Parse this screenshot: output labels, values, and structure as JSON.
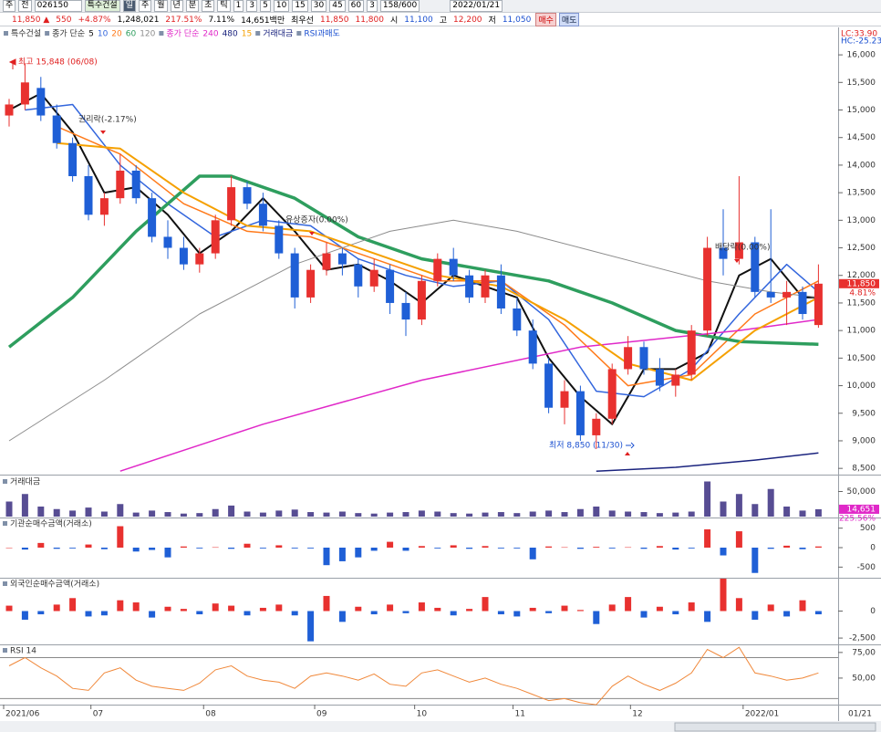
{
  "header": {
    "row1": [
      "주",
      "전",
      "026150",
      "특수건설",
      "일",
      "주",
      "월",
      "년",
      "분",
      "초",
      "틱",
      "1",
      "3",
      "5",
      "10",
      "15",
      "30",
      "45",
      "60",
      "3",
      "158/600",
      "2022/01/21"
    ],
    "row2": [
      "11,850 ▲",
      "550",
      "+4.87%",
      "1,248,021",
      "217.51%",
      "7.11%",
      "14,651백만",
      "최우선",
      "11,850",
      "11,800",
      "시",
      "11,100",
      "고",
      "12,200",
      "저",
      "11,050",
      "매수",
      "매도"
    ]
  },
  "chart_data": [
    {
      "type": "candlestick",
      "ma_label": "종가 단순",
      "extra_legend": "RSI과매도",
      "up_color": "#e8312f",
      "down_color": "#1f5fd6",
      "ohlc": [
        [
          14900,
          15200,
          14700,
          15100
        ],
        [
          15100,
          15848,
          15000,
          15500
        ],
        [
          15400,
          15600,
          14800,
          14900
        ],
        [
          14900,
          15100,
          14300,
          14400
        ],
        [
          14400,
          14500,
          13700,
          13800
        ],
        [
          13800,
          14000,
          13000,
          13100
        ],
        [
          13100,
          13500,
          12900,
          13400
        ],
        [
          13400,
          14200,
          13300,
          13900
        ],
        [
          13900,
          14000,
          13300,
          13400
        ],
        [
          13400,
          13500,
          12600,
          12700
        ],
        [
          12700,
          13000,
          12300,
          12500
        ],
        [
          12500,
          12700,
          12100,
          12200
        ],
        [
          12200,
          12500,
          12050,
          12400
        ],
        [
          12400,
          13100,
          12300,
          13000
        ],
        [
          13000,
          13800,
          12900,
          13600
        ],
        [
          13600,
          13700,
          13200,
          13300
        ],
        [
          13300,
          13500,
          12800,
          12900
        ],
        [
          12900,
          13000,
          12300,
          12400
        ],
        [
          12400,
          12500,
          11400,
          11600
        ],
        [
          11600,
          12200,
          11500,
          12100
        ],
        [
          12100,
          12600,
          12000,
          12400
        ],
        [
          12400,
          12500,
          12000,
          12200
        ],
        [
          12200,
          12300,
          11600,
          11800
        ],
        [
          11800,
          12300,
          11700,
          12100
        ],
        [
          12100,
          12200,
          11300,
          11500
        ],
        [
          11500,
          11700,
          10900,
          11200
        ],
        [
          11200,
          12000,
          11100,
          11900
        ],
        [
          11900,
          12400,
          11800,
          12300
        ],
        [
          12300,
          12500,
          11900,
          12000
        ],
        [
          12000,
          12100,
          11500,
          11600
        ],
        [
          11600,
          12100,
          11500,
          12000
        ],
        [
          12000,
          12200,
          11300,
          11400
        ],
        [
          11400,
          11600,
          10900,
          11000
        ],
        [
          11000,
          11200,
          10300,
          10400
        ],
        [
          10400,
          10500,
          9500,
          9600
        ],
        [
          9600,
          10100,
          9300,
          9900
        ],
        [
          9900,
          10000,
          9000,
          9100
        ],
        [
          9100,
          9500,
          8850,
          9400
        ],
        [
          9400,
          10400,
          9300,
          10300
        ],
        [
          10300,
          10900,
          10200,
          10700
        ],
        [
          10700,
          10800,
          10200,
          10300
        ],
        [
          10300,
          10500,
          9900,
          10000
        ],
        [
          10000,
          10300,
          9800,
          10200
        ],
        [
          10200,
          11100,
          10100,
          11000
        ],
        [
          11000,
          12700,
          10900,
          12500
        ],
        [
          12500,
          13200,
          12000,
          12300
        ],
        [
          12300,
          13800,
          12200,
          12600
        ],
        [
          12600,
          12700,
          11600,
          11700
        ],
        [
          11700,
          13200,
          11500,
          11600
        ],
        [
          11600,
          11900,
          11100,
          11700
        ],
        [
          11700,
          11800,
          11200,
          11300
        ],
        [
          11100,
          12200,
          11050,
          11850
        ]
      ],
      "series": [
        {
          "name": "5",
          "color": "#111111",
          "width": 2,
          "x": [
            0,
            2,
            4,
            6,
            8,
            10,
            12,
            14,
            16,
            18,
            20,
            22,
            24,
            26,
            28,
            30,
            32,
            34,
            36,
            38,
            40,
            42,
            44,
            46,
            48,
            50,
            51
          ],
          "values": [
            15000,
            15300,
            14600,
            13500,
            13600,
            13100,
            12400,
            12800,
            13400,
            12800,
            12100,
            12200,
            11900,
            11500,
            12000,
            11800,
            11600,
            10500,
            9800,
            9300,
            10300,
            10300,
            10600,
            12000,
            12300,
            11600,
            11600
          ]
        },
        {
          "name": "10",
          "color": "#3366dd",
          "width": 1.5,
          "x": [
            1,
            4,
            7,
            10,
            13,
            16,
            19,
            22,
            25,
            28,
            31,
            34,
            37,
            40,
            43,
            46,
            49,
            51
          ],
          "values": [
            15000,
            15100,
            14000,
            13300,
            12700,
            13000,
            12900,
            12300,
            12000,
            11800,
            11900,
            11200,
            9900,
            9800,
            10300,
            11300,
            12200,
            11700
          ]
        },
        {
          "name": "20",
          "color": "#ff7a1a",
          "width": 1.5,
          "x": [
            3,
            7,
            11,
            15,
            19,
            23,
            27,
            31,
            35,
            39,
            43,
            47,
            51
          ],
          "values": [
            14700,
            14200,
            13300,
            12800,
            12700,
            12300,
            11900,
            11900,
            11100,
            10000,
            10200,
            11300,
            11900
          ]
        },
        {
          "name": "60",
          "color": "#2e9e5e",
          "width": 3.5,
          "x": [
            0,
            4,
            8,
            12,
            14,
            18,
            22,
            26,
            30,
            34,
            38,
            42,
            46,
            51
          ],
          "values": [
            10700,
            11600,
            12800,
            13800,
            13800,
            13400,
            12700,
            12300,
            12100,
            11900,
            11500,
            11000,
            10800,
            10750
          ]
        },
        {
          "name": "120",
          "color": "#8c8c8c",
          "width": 1,
          "x": [
            0,
            6,
            12,
            18,
            24,
            28,
            32,
            36,
            40,
            44,
            48,
            51
          ],
          "values": [
            9000,
            10100,
            11300,
            12200,
            12800,
            13000,
            12800,
            12500,
            12200,
            11900,
            11700,
            11600
          ]
        },
        {
          "name": "240",
          "color": "#e028c8",
          "width": 1.5,
          "x": [
            7,
            16,
            26,
            36,
            46,
            51
          ],
          "values": [
            8450,
            9300,
            10100,
            10700,
            11000,
            11200
          ]
        },
        {
          "name": "480",
          "color": "#1a237e",
          "width": 1.5,
          "x": [
            37,
            42,
            47,
            51
          ],
          "values": [
            8450,
            8520,
            8650,
            8780
          ]
        },
        {
          "name": "15",
          "color": "#f5a000",
          "width": 2,
          "x": [
            3,
            7,
            11,
            15,
            19,
            23,
            27,
            31,
            35,
            39,
            43,
            47,
            51
          ],
          "values": [
            14400,
            14300,
            13500,
            12900,
            12800,
            12400,
            12000,
            11800,
            11200,
            10400,
            10100,
            11000,
            11600
          ]
        }
      ],
      "ylim": [
        8420,
        16250
      ],
      "yticks": [
        {
          "value": 8500,
          "label": "8,500"
        },
        {
          "value": 9000,
          "label": "9,000"
        },
        {
          "value": 9500,
          "label": "9,500"
        },
        {
          "value": 10000,
          "label": "10,000"
        },
        {
          "value": 10500,
          "label": "10,500"
        },
        {
          "value": 11000,
          "label": "11,000"
        },
        {
          "value": 11500,
          "label": "11,500"
        },
        {
          "value": 12000,
          "label": "12,000"
        },
        {
          "value": 12500,
          "label": "12,500"
        },
        {
          "value": 13000,
          "label": "13,000"
        },
        {
          "value": 13500,
          "label": "13,500"
        },
        {
          "value": 14000,
          "label": "14,000"
        },
        {
          "value": 14500,
          "label": "14,500"
        },
        {
          "value": 15000,
          "label": "15,000"
        },
        {
          "value": 15500,
          "label": "15,500"
        },
        {
          "value": 16000,
          "label": "16,000"
        }
      ],
      "annotations": [
        "최고 15,848 (06/08)",
        "권리락(-2.17%)",
        "유상증자(0.00%)",
        "배당락(0.00%)",
        "최저 8,850 (11/30)"
      ],
      "price_tag": {
        "value": 11850,
        "label": "11,850"
      },
      "change_tag": "4.81%",
      "corner_labels": [
        "LC:33.90",
        "HC:-25.23"
      ]
    },
    {
      "type": "bar",
      "title": "거래대금",
      "color": "#574d93",
      "values": [
        30000,
        45000,
        20000,
        15000,
        12000,
        18000,
        10000,
        25000,
        8000,
        12000,
        9000,
        6000,
        7000,
        15000,
        22000,
        10000,
        8000,
        12000,
        14000,
        9000,
        8000,
        10000,
        7000,
        6000,
        8000,
        9000,
        12000,
        10000,
        7000,
        6000,
        8000,
        9000,
        7000,
        10000,
        12000,
        9000,
        15000,
        20000,
        12000,
        10000,
        9000,
        7000,
        8000,
        10000,
        70000,
        30000,
        45000,
        25000,
        55000,
        20000,
        12000,
        14651
      ],
      "ylim": [
        0,
        80000
      ],
      "yticks": [
        {
          "value": 50000,
          "label": "50,000"
        }
      ],
      "tag": {
        "value": 14651,
        "label": "14,651"
      },
      "change_tag": "225.56%"
    },
    {
      "type": "bar",
      "title": "기관순매수금액(거래소)",
      "positive_color": "#e8312f",
      "negative_color": "#1f5fd6",
      "values": [
        0,
        -50,
        120,
        -30,
        -20,
        80,
        -40,
        550,
        -100,
        -60,
        -250,
        30,
        -20,
        10,
        -30,
        100,
        -20,
        60,
        -20,
        -20,
        -450,
        -350,
        -250,
        -80,
        150,
        -80,
        40,
        -20,
        60,
        -30,
        40,
        -20,
        -20,
        -300,
        30,
        10,
        -30,
        20,
        -20,
        10,
        -30,
        40,
        -50,
        -20,
        470,
        -200,
        420,
        -650,
        -30,
        50,
        -40,
        30
      ],
      "ylim": [
        -750,
        750
      ],
      "yticks": [
        500,
        0,
        -500
      ]
    },
    {
      "type": "bar",
      "title": "외국인순매수금액(거래소)",
      "positive_color": "#e8312f",
      "negative_color": "#1f5fd6",
      "values": [
        500,
        -800,
        -300,
        600,
        1200,
        -500,
        -400,
        1000,
        800,
        -600,
        400,
        200,
        -300,
        700,
        500,
        -400,
        300,
        600,
        -400,
        -2800,
        1400,
        -1000,
        400,
        -300,
        600,
        -200,
        800,
        300,
        -400,
        200,
        1300,
        -300,
        -500,
        300,
        -200,
        500,
        100,
        -1200,
        600,
        1300,
        -600,
        400,
        -300,
        800,
        -1000,
        3000,
        1200,
        -800,
        600,
        -500,
        1000,
        -300
      ],
      "ylim": [
        -3000,
        3000
      ],
      "yticks": [
        0,
        {
          "value": -2500,
          "label": "-2,500"
        }
      ]
    },
    {
      "type": "line",
      "title": "RSI 14",
      "color": "#f0883a",
      "values": [
        62,
        70,
        60,
        52,
        40,
        38,
        55,
        60,
        48,
        42,
        40,
        38,
        45,
        58,
        62,
        52,
        48,
        46,
        40,
        52,
        55,
        52,
        48,
        54,
        44,
        42,
        55,
        58,
        52,
        46,
        50,
        44,
        40,
        34,
        28,
        30,
        26,
        24,
        42,
        52,
        44,
        38,
        45,
        55,
        78,
        70,
        80,
        55,
        52,
        48,
        50,
        55
      ],
      "ylim": [
        25,
        82
      ],
      "yticks": [
        {
          "value": 75,
          "label": "75,00"
        },
        {
          "value": 50,
          "label": "50,00"
        }
      ],
      "levels": [
        70,
        30
      ],
      "xticks": [
        {
          "value": 0,
          "label": "2021/06"
        },
        {
          "value": 5.5,
          "label": "07"
        },
        {
          "value": 12.6,
          "label": "08"
        },
        {
          "value": 19.6,
          "label": "09"
        },
        {
          "value": 25.9,
          "label": "10"
        },
        {
          "value": 32.1,
          "label": "11"
        },
        {
          "value": 39.5,
          "label": "12"
        },
        {
          "value": 46.6,
          "label": "2022/01"
        }
      ],
      "axis_date": "01/21"
    }
  ]
}
